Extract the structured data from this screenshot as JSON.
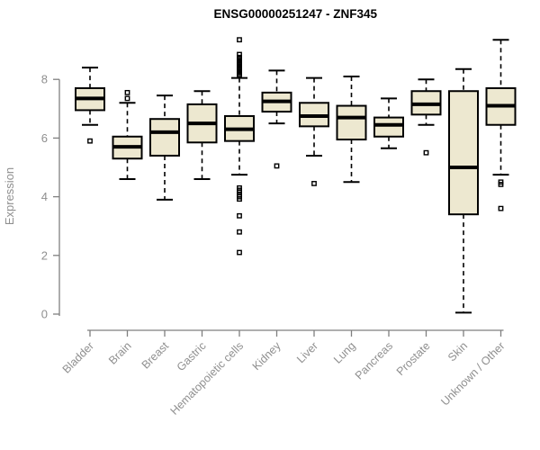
{
  "chart_data": {
    "type": "boxplot",
    "title": "ENSG00000251247 - ZNF345",
    "ylabel": "Expression",
    "xlabel": "",
    "ylim": [
      0,
      9.4
    ],
    "yticks": [
      0,
      2,
      4,
      6,
      8
    ],
    "grid": false,
    "legend": false,
    "categories": [
      "Bladder",
      "Brain",
      "Breast",
      "Gastric",
      "Hematopoietic cells",
      "Kidney",
      "Liver",
      "Lung",
      "Pancreas",
      "Prostate",
      "Skin",
      "Unknown / Other"
    ],
    "boxes": [
      {
        "category": "Bladder",
        "whisker_low": 6.45,
        "q1": 6.95,
        "median": 7.35,
        "q3": 7.7,
        "whisker_high": 8.4,
        "outliers": [
          5.9
        ]
      },
      {
        "category": "Brain",
        "whisker_low": 4.6,
        "q1": 5.3,
        "median": 5.7,
        "q3": 6.05,
        "whisker_high": 7.2,
        "outliers": [
          7.55,
          7.35
        ]
      },
      {
        "category": "Breast",
        "whisker_low": 3.9,
        "q1": 5.4,
        "median": 6.2,
        "q3": 6.65,
        "whisker_high": 7.45,
        "outliers": []
      },
      {
        "category": "Gastric",
        "whisker_low": 4.6,
        "q1": 5.85,
        "median": 6.5,
        "q3": 7.15,
        "whisker_high": 7.6,
        "outliers": []
      },
      {
        "category": "Hematopoietic cells",
        "whisker_low": 4.75,
        "q1": 5.9,
        "median": 6.3,
        "q3": 6.75,
        "whisker_high": 8.05,
        "outliers": [
          9.35,
          8.85,
          8.75,
          8.7,
          8.65,
          8.6,
          8.55,
          8.5,
          8.45,
          8.4,
          8.35,
          8.3,
          8.25,
          8.2,
          8.15,
          4.3,
          4.22,
          4.15,
          4.07,
          4.0,
          3.92,
          3.35,
          2.8,
          2.1
        ]
      },
      {
        "category": "Kidney",
        "whisker_low": 6.5,
        "q1": 6.9,
        "median": 7.25,
        "q3": 7.55,
        "whisker_high": 8.3,
        "outliers": [
          5.05
        ]
      },
      {
        "category": "Liver",
        "whisker_low": 5.4,
        "q1": 6.4,
        "median": 6.75,
        "q3": 7.2,
        "whisker_high": 8.05,
        "outliers": [
          4.45
        ]
      },
      {
        "category": "Lung",
        "whisker_low": 4.5,
        "q1": 5.95,
        "median": 6.7,
        "q3": 7.1,
        "whisker_high": 8.1,
        "outliers": []
      },
      {
        "category": "Pancreas",
        "whisker_low": 5.65,
        "q1": 6.05,
        "median": 6.45,
        "q3": 6.7,
        "whisker_high": 7.35,
        "outliers": []
      },
      {
        "category": "Prostate",
        "whisker_low": 6.45,
        "q1": 6.8,
        "median": 7.15,
        "q3": 7.6,
        "whisker_high": 8.0,
        "outliers": [
          5.5
        ]
      },
      {
        "category": "Skin",
        "whisker_low": 0.05,
        "q1": 3.4,
        "median": 5.0,
        "q3": 7.6,
        "whisker_high": 8.35,
        "outliers": []
      },
      {
        "category": "Unknown / Other",
        "whisker_low": 4.75,
        "q1": 6.45,
        "median": 7.1,
        "q3": 7.7,
        "whisker_high": 9.35,
        "outliers": [
          4.5,
          4.42,
          3.6
        ]
      }
    ],
    "colors": {
      "box_fill": "#EDE8D0",
      "box_border": "#000000",
      "median": "#000000",
      "whisker": "#000000",
      "outlier": "#000000",
      "axis_line": "#7f7f7f",
      "tick_label": "#8f8f8f",
      "title": "#000000",
      "background": "#ffffff"
    }
  }
}
